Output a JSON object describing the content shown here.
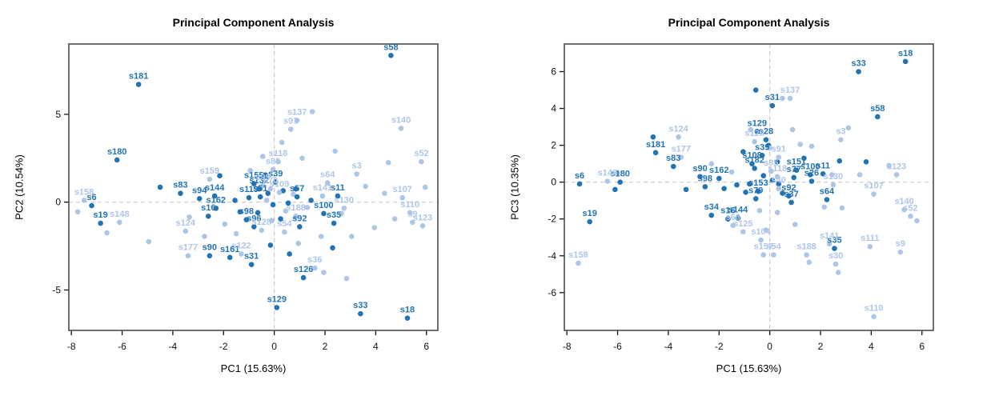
{
  "colors": {
    "dark": "#2173b4",
    "light": "#adc6e8",
    "box": "#4d4d4d",
    "refline": "#c9c9c9",
    "tick_text": "#111111"
  },
  "chart_data": [
    {
      "type": "scatter",
      "title": "Principal Component Analysis",
      "xlabel": "PC1 (15.63%)",
      "ylabel": "PC2 (10.54%)",
      "xlim": [
        -8.1,
        6.45
      ],
      "ylim": [
        -7.3,
        9.0
      ],
      "xticks": [
        -8,
        -6,
        -4,
        -2,
        0,
        2,
        4,
        6
      ],
      "yticks": [
        -5,
        0,
        5
      ],
      "grid": false,
      "legend": null,
      "reference_lines": {
        "x": 0,
        "y": 0,
        "style": "dashed"
      },
      "points": [
        [
          "s181",
          -5.35,
          6.7,
          "dark"
        ],
        [
          "s58",
          4.6,
          8.35,
          "dark"
        ],
        [
          "s180",
          -6.2,
          2.4,
          "dark"
        ],
        [
          "s83",
          -3.7,
          0.5,
          "dark"
        ],
        [
          "s94",
          -2.95,
          0.2,
          "dark"
        ],
        [
          "s6",
          -7.2,
          -0.2,
          "dark"
        ],
        [
          "s19",
          -6.85,
          -1.2,
          "dark"
        ],
        [
          "s90",
          -2.55,
          -3.05,
          "dark"
        ],
        [
          "s161",
          -1.75,
          -3.15,
          "dark"
        ],
        [
          "s31",
          -0.9,
          -3.55,
          "dark"
        ],
        [
          "s126",
          1.15,
          -4.3,
          "dark"
        ],
        [
          "s129",
          0.1,
          -6.0,
          "dark"
        ],
        [
          "s33",
          3.4,
          -6.35,
          "dark"
        ],
        [
          "s18",
          5.25,
          -6.6,
          "dark"
        ],
        [
          "s144",
          -2.35,
          0.35,
          "dark"
        ],
        [
          "s162",
          -2.3,
          -0.35,
          "dark"
        ],
        [
          "s16",
          -2.6,
          -0.8,
          "dark"
        ],
        [
          "s155",
          -0.8,
          1.05,
          "dark"
        ],
        [
          "s132",
          -0.6,
          0.75,
          "dark"
        ],
        [
          "s39",
          0.05,
          1.15,
          "dark"
        ],
        [
          "s119",
          -1.0,
          0.25,
          "dark"
        ],
        [
          "s51",
          -0.55,
          0.3,
          "dark"
        ],
        [
          "s57",
          0.9,
          0.3,
          "dark"
        ],
        [
          "s96",
          -0.8,
          -1.4,
          "dark"
        ],
        [
          "s98",
          -1.1,
          -1.0,
          "dark"
        ],
        [
          "s92",
          1.0,
          -1.4,
          "dark"
        ],
        [
          "s100",
          1.95,
          -0.65,
          "dark"
        ],
        [
          "s35",
          2.35,
          -1.2,
          "dark"
        ],
        [
          "s11",
          2.5,
          0.35,
          "dark"
        ],
        [
          "s158",
          -7.5,
          0.1,
          "light"
        ],
        [
          "s148",
          -6.1,
          -1.15,
          "light"
        ],
        [
          "s124",
          -3.5,
          -1.65,
          "light"
        ],
        [
          "s177",
          -3.4,
          -3.05,
          "light"
        ],
        [
          "s122",
          -1.3,
          -2.95,
          "light"
        ],
        [
          "s159",
          -2.55,
          1.3,
          "light"
        ],
        [
          "s118",
          0.15,
          2.3,
          "light"
        ],
        [
          "s85",
          -0.05,
          1.85,
          "light"
        ],
        [
          "s137",
          0.9,
          4.65,
          "light"
        ],
        [
          "s91",
          0.65,
          4.15,
          "light"
        ],
        [
          "s140",
          5.0,
          4.2,
          "light"
        ],
        [
          "s52",
          5.8,
          2.3,
          "light"
        ],
        [
          "s3",
          3.25,
          1.6,
          "light"
        ],
        [
          "s64",
          2.1,
          1.1,
          "light"
        ],
        [
          "s141",
          1.9,
          0.35,
          "light"
        ],
        [
          "s107",
          5.05,
          0.25,
          "light"
        ],
        [
          "s130",
          2.75,
          -0.35,
          "light"
        ],
        [
          "s110",
          5.35,
          -0.6,
          "light"
        ],
        [
          "s188",
          0.85,
          -0.8,
          "light"
        ],
        [
          "s54",
          0.4,
          -1.7,
          "light"
        ],
        [
          "s128",
          -0.5,
          -1.6,
          "light"
        ],
        [
          "s99",
          -0.45,
          0.95,
          "light"
        ],
        [
          "s70",
          -0.15,
          0.75,
          "light"
        ],
        [
          "s109",
          0.2,
          0.55,
          "light"
        ],
        [
          "s36",
          1.6,
          -3.75,
          "light"
        ],
        [
          "s9",
          5.45,
          -1.15,
          "light"
        ],
        [
          "s123",
          5.85,
          -1.35,
          "light"
        ]
      ],
      "unlabeled_points": [
        [
          -0.25,
          0.5,
          "dark"
        ],
        [
          0.35,
          0.65,
          "dark"
        ],
        [
          -0.05,
          -0.15,
          "dark"
        ],
        [
          0.55,
          -0.05,
          "dark"
        ],
        [
          -1.35,
          -0.55,
          "dark"
        ],
        [
          -0.65,
          -0.6,
          "dark"
        ],
        [
          0.25,
          -0.95,
          "dark"
        ],
        [
          1.45,
          0.1,
          "dark"
        ],
        [
          0.85,
          0.75,
          "dark"
        ],
        [
          -1.55,
          0.1,
          "dark"
        ],
        [
          -4.5,
          0.85,
          "dark"
        ],
        [
          -2.15,
          1.5,
          "dark"
        ],
        [
          2.3,
          -2.6,
          "dark"
        ],
        [
          0.6,
          -2.95,
          "dark"
        ],
        [
          -0.15,
          -2.45,
          "dark"
        ],
        [
          -0.35,
          1.55,
          "dark"
        ],
        [
          -7.75,
          -0.55,
          "light"
        ],
        [
          -6.6,
          -1.75,
          "light"
        ],
        [
          -4.95,
          -2.25,
          "light"
        ],
        [
          -3.35,
          -0.85,
          "light"
        ],
        [
          -2.75,
          -1.95,
          "light"
        ],
        [
          -1.95,
          -1.25,
          "light"
        ],
        [
          1.5,
          5.15,
          "light"
        ],
        [
          0.3,
          3.4,
          "light"
        ],
        [
          -0.45,
          2.6,
          "light"
        ],
        [
          1.1,
          2.5,
          "light"
        ],
        [
          2.4,
          2.9,
          "light"
        ],
        [
          4.5,
          2.25,
          "light"
        ],
        [
          3.6,
          0.9,
          "light"
        ],
        [
          4.35,
          0.5,
          "light"
        ],
        [
          4.75,
          -0.95,
          "light"
        ],
        [
          3.95,
          -1.45,
          "light"
        ],
        [
          3.05,
          -1.95,
          "light"
        ],
        [
          2.65,
          -0.65,
          "light"
        ],
        [
          1.85,
          -1.95,
          "light"
        ],
        [
          0.95,
          -2.35,
          "light"
        ],
        [
          -0.95,
          1.8,
          "light"
        ],
        [
          1.95,
          -4.0,
          "light"
        ],
        [
          2.85,
          -4.35,
          "light"
        ],
        [
          5.95,
          0.85,
          "light"
        ],
        [
          0.45,
          -0.5,
          "light"
        ],
        [
          1.3,
          -0.3,
          "light"
        ],
        [
          -0.1,
          -1.05,
          "light"
        ],
        [
          -1.5,
          -1.8,
          "light"
        ],
        [
          0.75,
          0.45,
          "light"
        ],
        [
          -0.3,
          0.1,
          "light"
        ]
      ]
    },
    {
      "type": "scatter",
      "title": "Principal Component Analysis",
      "xlabel": "PC1 (15.63%)",
      "ylabel": "PC3 (10.35%)",
      "xlim": [
        -8.1,
        6.45
      ],
      "ylim": [
        -8.05,
        7.5
      ],
      "xticks": [
        -8,
        -6,
        -4,
        -2,
        0,
        2,
        4,
        6
      ],
      "yticks": [
        -6,
        -4,
        -2,
        0,
        2,
        4,
        6
      ],
      "grid": false,
      "legend": null,
      "reference_lines": {
        "x": 0,
        "y": 0,
        "style": "dashed"
      },
      "points": [
        [
          "s18",
          5.35,
          6.55,
          "dark"
        ],
        [
          "s33",
          3.5,
          6.0,
          "dark"
        ],
        [
          "s31",
          0.1,
          4.15,
          "dark"
        ],
        [
          "s129",
          -0.5,
          2.75,
          "dark"
        ],
        [
          "s58",
          4.25,
          3.55,
          "dark"
        ],
        [
          "s181",
          -4.5,
          1.6,
          "dark"
        ],
        [
          "s83",
          -3.8,
          0.85,
          "dark"
        ],
        [
          "s180",
          -5.9,
          0.0,
          "dark"
        ],
        [
          "s6",
          -7.5,
          -0.1,
          "dark"
        ],
        [
          "s19",
          -7.1,
          -2.15,
          "dark"
        ],
        [
          "s90",
          -2.75,
          0.3,
          "dark"
        ],
        [
          "s98",
          -2.55,
          -0.25,
          "dark"
        ],
        [
          "s34",
          -2.3,
          -1.8,
          "dark"
        ],
        [
          "s16",
          -1.65,
          -2.0,
          "dark"
        ],
        [
          "s144",
          -1.25,
          -1.95,
          "dark"
        ],
        [
          "s162",
          -2.0,
          0.2,
          "dark"
        ],
        [
          "s182",
          -0.6,
          0.75,
          "dark"
        ],
        [
          "s108",
          -0.7,
          1.0,
          "dark"
        ],
        [
          "s28",
          -0.15,
          2.3,
          "dark"
        ],
        [
          "s39",
          -0.3,
          1.45,
          "dark"
        ],
        [
          "s151",
          1.05,
          0.65,
          "dark"
        ],
        [
          "s77",
          0.95,
          0.25,
          "dark"
        ],
        [
          "s100",
          1.6,
          0.4,
          "dark"
        ],
        [
          "s11",
          2.1,
          0.45,
          "dark"
        ],
        [
          "s26",
          1.65,
          0.05,
          "dark"
        ],
        [
          "s153",
          -0.45,
          -0.5,
          "dark"
        ],
        [
          "s79",
          -0.55,
          -0.9,
          "dark"
        ],
        [
          "s92",
          0.75,
          -0.75,
          "dark"
        ],
        [
          "s37",
          0.85,
          -1.1,
          "dark"
        ],
        [
          "s64",
          2.25,
          -0.95,
          "dark"
        ],
        [
          "s35",
          2.55,
          -3.6,
          "dark"
        ],
        [
          "s137",
          0.8,
          4.55,
          "light"
        ],
        [
          "s124",
          -3.6,
          2.45,
          "light"
        ],
        [
          "s177",
          -3.5,
          1.35,
          "light"
        ],
        [
          "s128",
          -0.6,
          2.2,
          "light"
        ],
        [
          "s91",
          0.35,
          1.35,
          "light"
        ],
        [
          "s85",
          0.05,
          0.6,
          "light"
        ],
        [
          "s118",
          0.3,
          0.3,
          "light"
        ],
        [
          "s40",
          0.35,
          -0.35,
          "light"
        ],
        [
          "s3",
          2.8,
          2.3,
          "light"
        ],
        [
          "s123",
          5.0,
          0.4,
          "light"
        ],
        [
          "s130",
          2.5,
          -0.15,
          "light"
        ],
        [
          "s107",
          4.1,
          -0.65,
          "light"
        ],
        [
          "s148",
          -6.4,
          0.05,
          "light"
        ],
        [
          "s158",
          -7.55,
          -4.4,
          "light"
        ],
        [
          "s125",
          -1.05,
          -2.7,
          "light"
        ],
        [
          "s66",
          -1.45,
          -2.35,
          "light"
        ],
        [
          "s104",
          -0.35,
          -3.15,
          "light"
        ],
        [
          "s157",
          -0.25,
          -3.95,
          "light"
        ],
        [
          "s54",
          0.15,
          -3.95,
          "light"
        ],
        [
          "s188",
          1.45,
          -3.95,
          "light"
        ],
        [
          "s141",
          2.35,
          -3.35,
          "light"
        ],
        [
          "s30",
          2.6,
          -4.45,
          "light"
        ],
        [
          "s111",
          3.95,
          -3.5,
          "light"
        ],
        [
          "s9",
          5.15,
          -3.8,
          "light"
        ],
        [
          "s110",
          4.1,
          -7.3,
          "light"
        ],
        [
          "s140",
          5.3,
          -1.5,
          "light"
        ],
        [
          "s52",
          5.55,
          -1.85,
          "light"
        ]
      ],
      "unlabeled_points": [
        [
          -0.55,
          5.0,
          "dark"
        ],
        [
          -4.6,
          2.45,
          "dark"
        ],
        [
          -1.05,
          1.65,
          "dark"
        ],
        [
          0.3,
          1.1,
          "dark"
        ],
        [
          1.35,
          1.3,
          "dark"
        ],
        [
          2.75,
          1.15,
          "dark"
        ],
        [
          3.8,
          1.1,
          "dark"
        ],
        [
          -0.8,
          -0.1,
          "dark"
        ],
        [
          -1.3,
          -0.15,
          "dark"
        ],
        [
          -1.8,
          -0.35,
          "dark"
        ],
        [
          0.1,
          0.1,
          "dark"
        ],
        [
          0.35,
          -0.1,
          "dark"
        ],
        [
          -0.25,
          0.35,
          "dark"
        ],
        [
          -0.05,
          2.0,
          "dark"
        ],
        [
          -6.1,
          -0.4,
          "dark"
        ],
        [
          -3.3,
          -0.4,
          "dark"
        ],
        [
          -0.95,
          -0.55,
          "dark"
        ],
        [
          0.5,
          -0.6,
          "dark"
        ],
        [
          -6.0,
          0.5,
          "light"
        ],
        [
          -2.3,
          1.0,
          "light"
        ],
        [
          -1.5,
          0.55,
          "light"
        ],
        [
          0.9,
          2.85,
          "light"
        ],
        [
          1.2,
          2.05,
          "light"
        ],
        [
          1.65,
          1.95,
          "light"
        ],
        [
          0.5,
          4.55,
          "light"
        ],
        [
          3.1,
          2.95,
          "light"
        ],
        [
          2.45,
          0.4,
          "light"
        ],
        [
          3.55,
          0.4,
          "light"
        ],
        [
          4.7,
          0.9,
          "light"
        ],
        [
          2.15,
          -1.35,
          "light"
        ],
        [
          2.85,
          -1.4,
          "light"
        ],
        [
          -0.4,
          -1.55,
          "light"
        ],
        [
          0.3,
          -1.65,
          "light"
        ],
        [
          1.0,
          -2.3,
          "light"
        ],
        [
          5.8,
          -2.1,
          "light"
        ],
        [
          -0.75,
          2.85,
          "light"
        ],
        [
          0.0,
          1.85,
          "light"
        ],
        [
          -0.15,
          -2.6,
          "light"
        ],
        [
          1.55,
          -4.35,
          "light"
        ],
        [
          2.7,
          -4.9,
          "light"
        ]
      ]
    }
  ]
}
